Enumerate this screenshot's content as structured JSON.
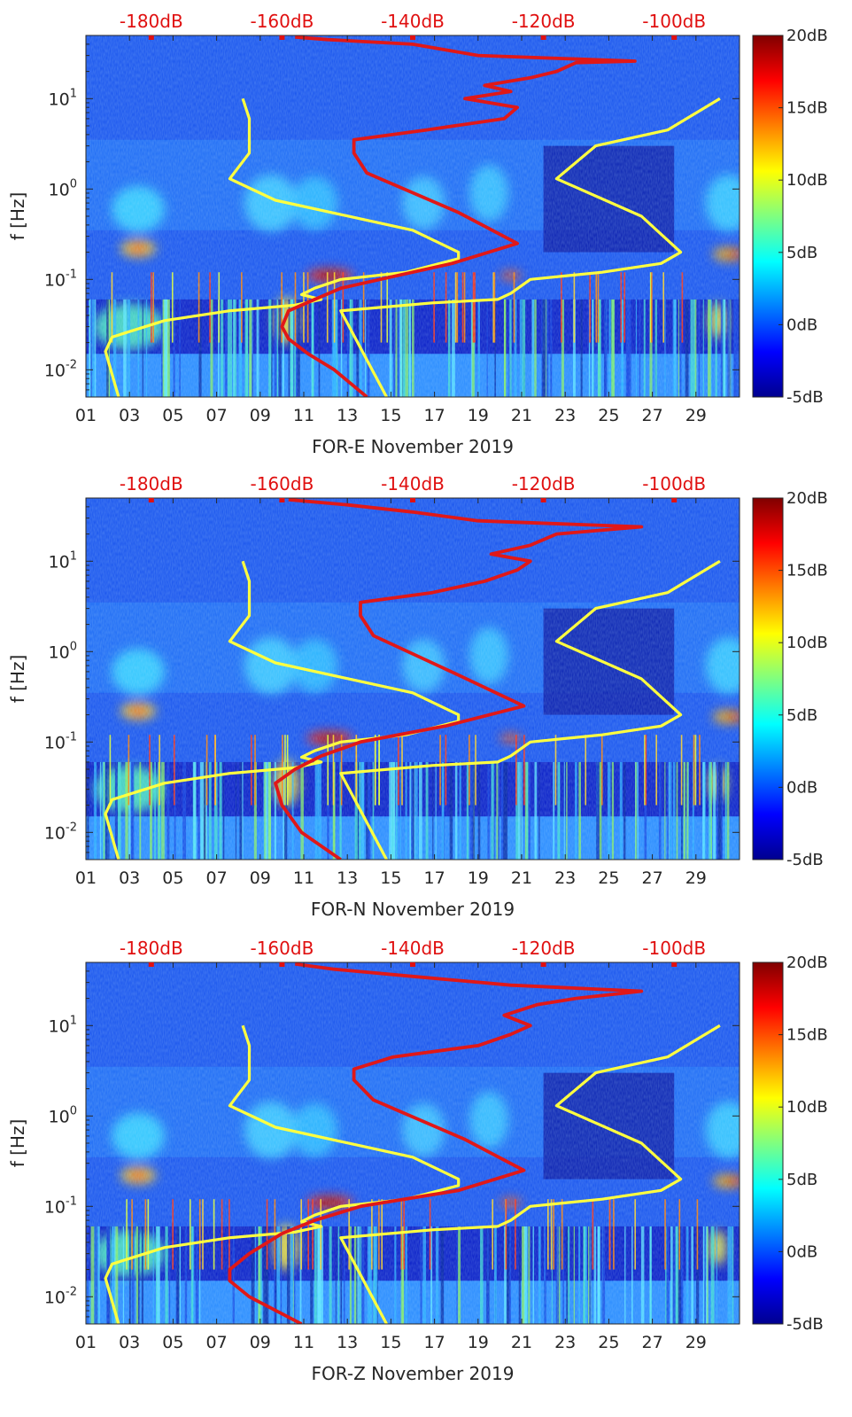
{
  "chart_data": [
    {
      "type": "heatmap",
      "title": "",
      "xlabel": "FOR-E November 2019",
      "ylabel": "f [Hz]",
      "x_ticks": [
        "01",
        "03",
        "05",
        "07",
        "09",
        "11",
        "13",
        "15",
        "17",
        "19",
        "21",
        "23",
        "25",
        "27",
        "29"
      ],
      "x_range_days": [
        1,
        31
      ],
      "y_scale": "log",
      "y_range_hz": [
        0.005,
        50
      ],
      "y_ticks": [
        {
          "value": 0.01,
          "base": "10",
          "exp": "-2"
        },
        {
          "value": 0.1,
          "base": "10",
          "exp": "-1"
        },
        {
          "value": 1,
          "base": "10",
          "exp": "0"
        },
        {
          "value": 10,
          "base": "10",
          "exp": "1"
        }
      ],
      "top_axis_ticks": [
        "-180dB",
        "-160dB",
        "-140dB",
        "-120dB",
        "-100dB"
      ],
      "top_axis_range_db": [
        -190,
        -90
      ],
      "colorbar": {
        "range_db": [
          -5,
          20
        ],
        "ticks": [
          "20dB",
          "15dB",
          "10dB",
          "5dB",
          "0dB",
          "-5dB"
        ],
        "colormap": "jet"
      },
      "series": [
        {
          "name": "noise model (low / high)",
          "color": "#ffff40",
          "description": "yellow reference curves",
          "low": [
            [
              -185,
              0.005
            ],
            [
              -187,
              0.016
            ],
            [
              -186,
              0.023
            ],
            [
              -178,
              0.035
            ],
            [
              -168,
              0.045
            ],
            [
              -158,
              0.052
            ],
            [
              -154,
              0.06
            ],
            [
              -157,
              0.068
            ],
            [
              -155,
              0.08
            ],
            [
              -151,
              0.1
            ],
            [
              -141,
              0.12
            ],
            [
              -133,
              0.17
            ],
            [
              -133,
              0.2
            ],
            [
              -140,
              0.35
            ],
            [
              -161,
              0.75
            ],
            [
              -168,
              1.3
            ],
            [
              -165,
              2.5
            ],
            [
              -165,
              6
            ],
            [
              -166,
              10
            ]
          ],
          "high": [
            [
              -144,
              0.005
            ],
            [
              -151,
              0.045
            ],
            [
              -137,
              0.055
            ],
            [
              -127,
              0.06
            ],
            [
              -125,
              0.07
            ],
            [
              -122,
              0.1
            ],
            [
              -111,
              0.12
            ],
            [
              -102,
              0.15
            ],
            [
              -99,
              0.2
            ],
            [
              -105,
              0.5
            ],
            [
              -118,
              1.3
            ],
            [
              -112,
              3
            ],
            [
              -101,
              4.5
            ],
            [
              -93,
              10
            ]
          ]
        },
        {
          "name": "median PSD",
          "color": "#e01818",
          "description": "red curve read on the top dB axis",
          "points": [
            [
              -147,
              0.005
            ],
            [
              -152,
              0.01
            ],
            [
              -156,
              0.015
            ],
            [
              -159,
              0.022
            ],
            [
              -160,
              0.03
            ],
            [
              -159,
              0.045
            ],
            [
              -155,
              0.06
            ],
            [
              -151,
              0.08
            ],
            [
              -145,
              0.1
            ],
            [
              -134,
              0.15
            ],
            [
              -124,
              0.25
            ],
            [
              -133,
              0.55
            ],
            [
              -147,
              1.5
            ],
            [
              -149,
              2.5
            ],
            [
              -149,
              3.5
            ],
            [
              -138,
              4.5
            ],
            [
              -126,
              6
            ],
            [
              -124,
              8
            ],
            [
              -132,
              10
            ],
            [
              -125,
              12
            ],
            [
              -129,
              14
            ],
            [
              -122,
              17
            ],
            [
              -118,
              20
            ],
            [
              -115,
              25
            ],
            [
              -106,
              26
            ],
            [
              -130,
              30
            ],
            [
              -140,
              40
            ],
            [
              -153,
              45
            ],
            [
              -158,
              48
            ]
          ]
        }
      ]
    },
    {
      "type": "heatmap",
      "title": "",
      "xlabel": "FOR-N November 2019",
      "ylabel": "f [Hz]",
      "x_ticks": [
        "01",
        "03",
        "05",
        "07",
        "09",
        "11",
        "13",
        "15",
        "17",
        "19",
        "21",
        "23",
        "25",
        "27",
        "29"
      ],
      "x_range_days": [
        1,
        31
      ],
      "y_scale": "log",
      "y_range_hz": [
        0.005,
        50
      ],
      "y_ticks": [
        {
          "value": 0.01,
          "base": "10",
          "exp": "-2"
        },
        {
          "value": 0.1,
          "base": "10",
          "exp": "-1"
        },
        {
          "value": 1,
          "base": "10",
          "exp": "0"
        },
        {
          "value": 10,
          "base": "10",
          "exp": "1"
        }
      ],
      "top_axis_ticks": [
        "-180dB",
        "-160dB",
        "-140dB",
        "-120dB",
        "-100dB"
      ],
      "top_axis_range_db": [
        -190,
        -90
      ],
      "colorbar": {
        "range_db": [
          -5,
          20
        ],
        "ticks": [
          "20dB",
          "15dB",
          "10dB",
          "5dB",
          "0dB",
          "-5dB"
        ],
        "colormap": "jet"
      },
      "series": [
        {
          "name": "noise model (low / high)",
          "color": "#ffff40",
          "description": "yellow reference curves",
          "low": [
            [
              -185,
              0.005
            ],
            [
              -187,
              0.016
            ],
            [
              -186,
              0.023
            ],
            [
              -178,
              0.035
            ],
            [
              -168,
              0.045
            ],
            [
              -158,
              0.052
            ],
            [
              -154,
              0.06
            ],
            [
              -157,
              0.068
            ],
            [
              -155,
              0.08
            ],
            [
              -151,
              0.1
            ],
            [
              -141,
              0.12
            ],
            [
              -133,
              0.17
            ],
            [
              -133,
              0.2
            ],
            [
              -140,
              0.35
            ],
            [
              -161,
              0.75
            ],
            [
              -168,
              1.3
            ],
            [
              -165,
              2.5
            ],
            [
              -165,
              6
            ],
            [
              -166,
              10
            ]
          ],
          "high": [
            [
              -144,
              0.005
            ],
            [
              -151,
              0.045
            ],
            [
              -137,
              0.055
            ],
            [
              -127,
              0.06
            ],
            [
              -125,
              0.07
            ],
            [
              -122,
              0.1
            ],
            [
              -111,
              0.12
            ],
            [
              -102,
              0.15
            ],
            [
              -99,
              0.2
            ],
            [
              -105,
              0.5
            ],
            [
              -118,
              1.3
            ],
            [
              -112,
              3
            ],
            [
              -101,
              4.5
            ],
            [
              -93,
              10
            ]
          ]
        },
        {
          "name": "median PSD",
          "color": "#e01818",
          "description": "red curve read on the top dB axis",
          "points": [
            [
              -151,
              0.005
            ],
            [
              -157,
              0.01
            ],
            [
              -160,
              0.02
            ],
            [
              -161,
              0.035
            ],
            [
              -158,
              0.05
            ],
            [
              -154,
              0.07
            ],
            [
              -148,
              0.1
            ],
            [
              -135,
              0.15
            ],
            [
              -123,
              0.25
            ],
            [
              -133,
              0.55
            ],
            [
              -146,
              1.5
            ],
            [
              -148,
              2.5
            ],
            [
              -148,
              3.5
            ],
            [
              -137,
              4.5
            ],
            [
              -129,
              6
            ],
            [
              -124,
              8
            ],
            [
              -122,
              10
            ],
            [
              -128,
              12
            ],
            [
              -122,
              15
            ],
            [
              -118,
              20
            ],
            [
              -105,
              24
            ],
            [
              -130,
              28
            ],
            [
              -140,
              35
            ],
            [
              -150,
              42
            ],
            [
              -159,
              48
            ]
          ]
        }
      ]
    },
    {
      "type": "heatmap",
      "title": "",
      "xlabel": "FOR-Z November 2019",
      "ylabel": "f [Hz]",
      "x_ticks": [
        "01",
        "03",
        "05",
        "07",
        "09",
        "11",
        "13",
        "15",
        "17",
        "19",
        "21",
        "23",
        "25",
        "27",
        "29"
      ],
      "x_range_days": [
        1,
        31
      ],
      "y_scale": "log",
      "y_range_hz": [
        0.005,
        50
      ],
      "y_ticks": [
        {
          "value": 0.01,
          "base": "10",
          "exp": "-2"
        },
        {
          "value": 0.1,
          "base": "10",
          "exp": "-1"
        },
        {
          "value": 1,
          "base": "10",
          "exp": "0"
        },
        {
          "value": 10,
          "base": "10",
          "exp": "1"
        }
      ],
      "top_axis_ticks": [
        "-180dB",
        "-160dB",
        "-140dB",
        "-120dB",
        "-100dB"
      ],
      "top_axis_range_db": [
        -190,
        -90
      ],
      "colorbar": {
        "range_db": [
          -5,
          20
        ],
        "ticks": [
          "20dB",
          "15dB",
          "10dB",
          "5dB",
          "0dB",
          "-5dB"
        ],
        "colormap": "jet"
      },
      "series": [
        {
          "name": "noise model (low / high)",
          "color": "#ffff40",
          "description": "yellow reference curves",
          "low": [
            [
              -185,
              0.005
            ],
            [
              -187,
              0.016
            ],
            [
              -186,
              0.023
            ],
            [
              -178,
              0.035
            ],
            [
              -168,
              0.045
            ],
            [
              -158,
              0.052
            ],
            [
              -154,
              0.06
            ],
            [
              -157,
              0.068
            ],
            [
              -155,
              0.08
            ],
            [
              -151,
              0.1
            ],
            [
              -141,
              0.12
            ],
            [
              -133,
              0.17
            ],
            [
              -133,
              0.2
            ],
            [
              -140,
              0.35
            ],
            [
              -161,
              0.75
            ],
            [
              -168,
              1.3
            ],
            [
              -165,
              2.5
            ],
            [
              -165,
              6
            ],
            [
              -166,
              10
            ]
          ],
          "high": [
            [
              -144,
              0.005
            ],
            [
              -151,
              0.045
            ],
            [
              -137,
              0.055
            ],
            [
              -127,
              0.06
            ],
            [
              -125,
              0.07
            ],
            [
              -122,
              0.1
            ],
            [
              -111,
              0.12
            ],
            [
              -102,
              0.15
            ],
            [
              -99,
              0.2
            ],
            [
              -105,
              0.5
            ],
            [
              -118,
              1.3
            ],
            [
              -112,
              3
            ],
            [
              -101,
              4.5
            ],
            [
              -93,
              10
            ]
          ]
        },
        {
          "name": "median PSD",
          "color": "#e01818",
          "description": "red curve read on the top dB axis",
          "points": [
            [
              -157,
              0.005
            ],
            [
              -165,
              0.01
            ],
            [
              -168,
              0.015
            ],
            [
              -168,
              0.02
            ],
            [
              -165,
              0.03
            ],
            [
              -160,
              0.05
            ],
            [
              -155,
              0.07
            ],
            [
              -148,
              0.1
            ],
            [
              -133,
              0.15
            ],
            [
              -123,
              0.25
            ],
            [
              -132,
              0.55
            ],
            [
              -146,
              1.5
            ],
            [
              -149,
              2.5
            ],
            [
              -149,
              3.3
            ],
            [
              -143,
              4.5
            ],
            [
              -130,
              6
            ],
            [
              -125,
              8
            ],
            [
              -122,
              10
            ],
            [
              -126,
              13
            ],
            [
              -121,
              17
            ],
            [
              -115,
              20
            ],
            [
              -105,
              24
            ],
            [
              -125,
              28
            ],
            [
              -140,
              35
            ],
            [
              -152,
              42
            ],
            [
              -158,
              48
            ]
          ]
        }
      ]
    }
  ]
}
